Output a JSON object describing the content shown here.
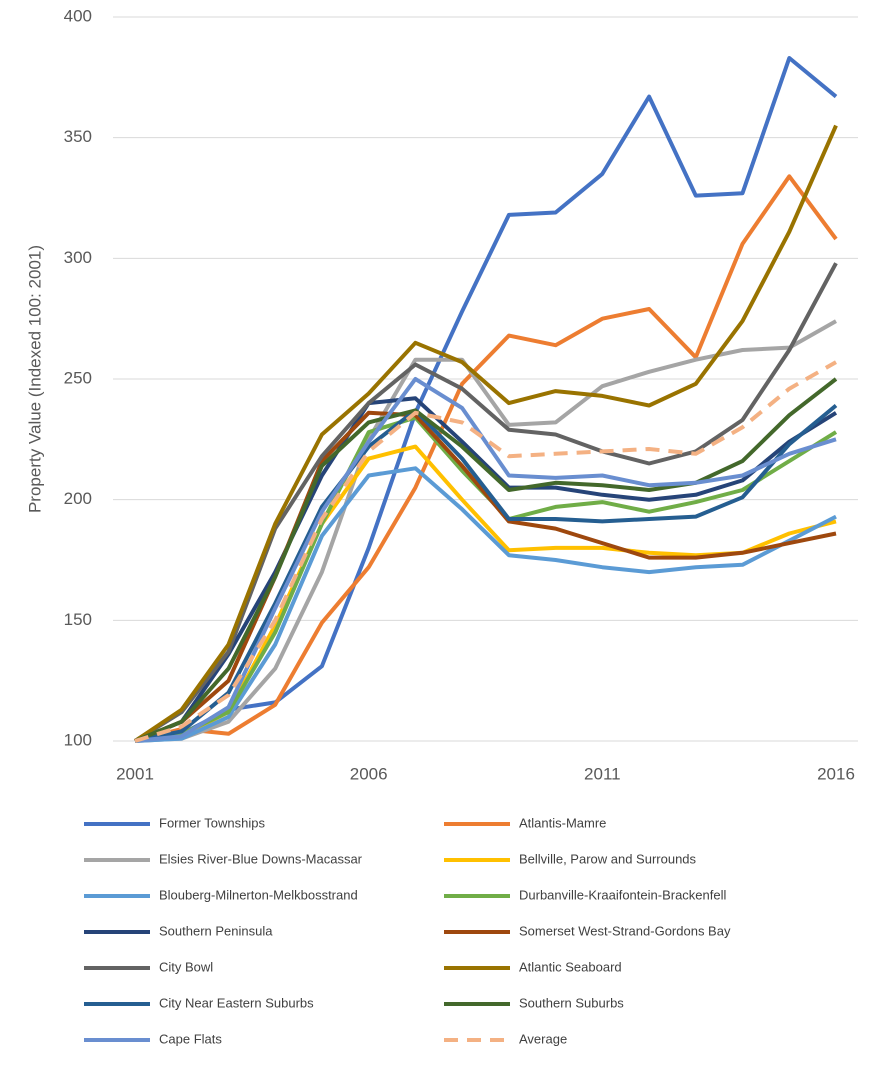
{
  "chart_data": {
    "type": "line",
    "y_label": "Property Value (Indexed 100: 2001)",
    "x": [
      2001,
      2002,
      2003,
      2004,
      2005,
      2006,
      2007,
      2008,
      2009,
      2010,
      2011,
      2012,
      2013,
      2014,
      2015,
      2016
    ],
    "xlim": [
      2001,
      2016
    ],
    "xticks": [
      2001,
      2006,
      2011,
      2016
    ],
    "ylim": [
      100,
      400
    ],
    "yticks": [
      100,
      150,
      200,
      250,
      300,
      350,
      400
    ],
    "grid": true,
    "legend": "bottom",
    "series": [
      {
        "name": "Former Townships",
        "color": "#4472c4",
        "values": [
          100,
          103,
          113,
          116,
          131,
          180,
          236,
          278,
          318,
          319,
          335,
          367,
          326,
          327,
          383,
          367
        ]
      },
      {
        "name": "Atlantis-Mamre",
        "color": "#ed7d31",
        "values": [
          100,
          105,
          103,
          115,
          149,
          172,
          205,
          248,
          268,
          264,
          275,
          279,
          259,
          306,
          334,
          308
        ]
      },
      {
        "name": "Elsies River-Blue Downs-Macassar",
        "color": "#a5a5a5",
        "values": [
          100,
          101,
          108,
          130,
          170,
          225,
          258,
          258,
          231,
          232,
          247,
          253,
          258,
          262,
          263,
          274
        ]
      },
      {
        "name": "Bellville, Parow and Surrounds",
        "color": "#ffc000",
        "values": [
          100,
          102,
          112,
          148,
          190,
          217,
          222,
          200,
          179,
          180,
          180,
          178,
          177,
          178,
          186,
          191
        ]
      },
      {
        "name": "Blouberg-Milnerton-Melkbosstrand",
        "color": "#5b9bd5",
        "values": [
          100,
          101,
          110,
          140,
          185,
          210,
          213,
          196,
          177,
          175,
          172,
          170,
          172,
          173,
          183,
          193
        ]
      },
      {
        "name": "Durbanville-Kraaifontein-Brackenfell",
        "color": "#70ad47",
        "values": [
          100,
          103,
          112,
          145,
          190,
          228,
          234,
          212,
          192,
          197,
          199,
          195,
          199,
          204,
          216,
          228
        ]
      },
      {
        "name": "Southern Peninsula",
        "color": "#264478",
        "values": [
          100,
          108,
          136,
          170,
          210,
          240,
          242,
          224,
          205,
          205,
          202,
          200,
          202,
          208,
          224,
          236
        ]
      },
      {
        "name": "Somerset West-Strand-Gordons Bay",
        "color": "#9e480e",
        "values": [
          100,
          108,
          125,
          168,
          216,
          236,
          235,
          214,
          191,
          188,
          182,
          176,
          176,
          178,
          182,
          186
        ]
      },
      {
        "name": "City Bowl",
        "color": "#636363",
        "values": [
          100,
          112,
          137,
          188,
          218,
          240,
          256,
          246,
          229,
          227,
          220,
          215,
          220,
          233,
          262,
          298
        ]
      },
      {
        "name": "Atlantic Seaboard",
        "color": "#997300",
        "values": [
          100,
          113,
          140,
          190,
          227,
          244,
          265,
          257,
          240,
          245,
          243,
          239,
          248,
          274,
          311,
          355
        ]
      },
      {
        "name": "City Near Eastern Suburbs",
        "color": "#255e91",
        "values": [
          100,
          104,
          120,
          157,
          197,
          222,
          237,
          217,
          192,
          192,
          191,
          192,
          193,
          201,
          223,
          239
        ]
      },
      {
        "name": "Southern Suburbs",
        "color": "#43682b",
        "values": [
          100,
          108,
          130,
          168,
          214,
          232,
          237,
          222,
          204,
          207,
          206,
          204,
          207,
          216,
          235,
          250
        ]
      },
      {
        "name": "Cape Flats",
        "color": "#698ed0",
        "values": [
          100,
          102,
          114,
          155,
          195,
          224,
          250,
          238,
          210,
          209,
          210,
          206,
          207,
          210,
          219,
          225
        ]
      },
      {
        "name": "Average",
        "color": "#f4b183",
        "dashed": true,
        "values": [
          100,
          106,
          119,
          150,
          192,
          220,
          236,
          232,
          218,
          219,
          220,
          221,
          219,
          230,
          246,
          257
        ]
      }
    ]
  }
}
